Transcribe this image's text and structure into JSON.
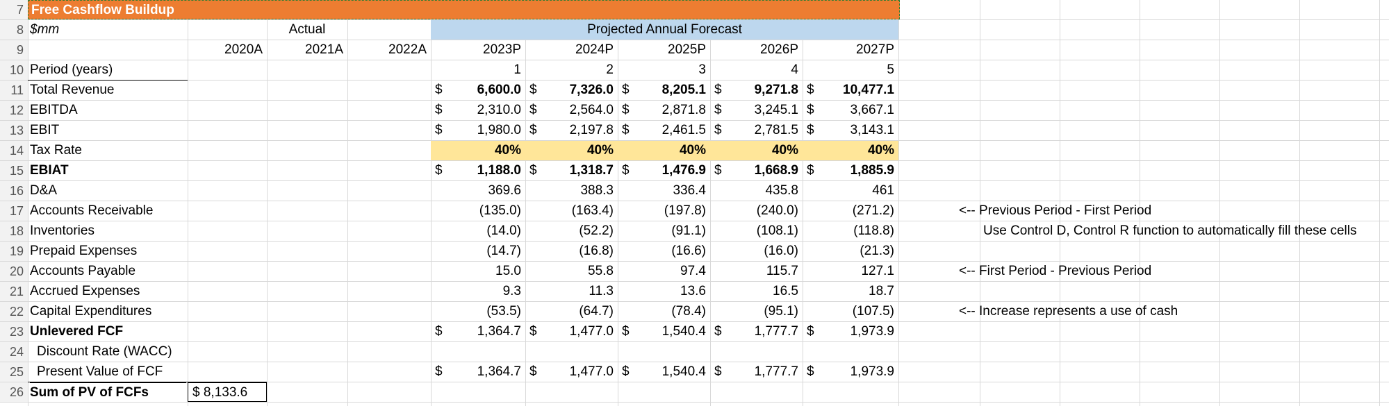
{
  "title": "Free Cashflow Buildup",
  "units": "$mm",
  "actual_header": "Actual",
  "projected_header": "Projected Annual Forecast",
  "years": [
    "2020A",
    "2021A",
    "2022A",
    "2023P",
    "2024P",
    "2025P",
    "2026P",
    "2027P"
  ],
  "period_label": "Period (years)",
  "periods": [
    "1",
    "2",
    "3",
    "4",
    "5"
  ],
  "row_numbers": [
    "7",
    "8",
    "9",
    "10",
    "11",
    "12",
    "13",
    "14",
    "15",
    "16",
    "17",
    "18",
    "19",
    "20",
    "21",
    "22",
    "23",
    "24",
    "25",
    "26"
  ],
  "dollar_sign": "$",
  "rows": [
    {
      "label": "Total Revenue",
      "values": [
        "6,600.0",
        "7,326.0",
        "8,205.1",
        "9,271.8",
        "10,477.1"
      ],
      "dollar": true,
      "bold_vals": true
    },
    {
      "label": "EBITDA",
      "values": [
        "2,310.0",
        "2,564.0",
        "2,871.8",
        "3,245.1",
        "3,667.1"
      ],
      "dollar": true
    },
    {
      "label": "EBIT",
      "values": [
        "1,980.0",
        "2,197.8",
        "2,461.5",
        "2,781.5",
        "3,143.1"
      ],
      "dollar": true
    },
    {
      "label": "Tax Rate",
      "values": [
        "40%",
        "40%",
        "40%",
        "40%",
        "40%"
      ],
      "highlight": true,
      "bold_vals": true
    },
    {
      "label": "EBIAT",
      "values": [
        "1,188.0",
        "1,318.7",
        "1,476.9",
        "1,668.9",
        "1,885.9"
      ],
      "dollar": true,
      "bold": true,
      "bold_vals": true
    },
    {
      "label": "D&A",
      "values": [
        "369.6",
        "388.3",
        "336.4",
        "435.8",
        "461"
      ]
    },
    {
      "label": "Accounts Receivable",
      "values": [
        "(135.0)",
        "(163.4)",
        "(197.8)",
        "(240.0)",
        "(271.2)"
      ]
    },
    {
      "label": "Inventories",
      "values": [
        "(14.0)",
        "(52.2)",
        "(91.1)",
        "(108.1)",
        "(118.8)"
      ]
    },
    {
      "label": "Prepaid Expenses",
      "values": [
        "(14.7)",
        "(16.8)",
        "(16.6)",
        "(16.0)",
        "(21.3)"
      ]
    },
    {
      "label": "Accounts Payable",
      "values": [
        "15.0",
        "55.8",
        "97.4",
        "115.7",
        "127.1"
      ]
    },
    {
      "label": "Accrued Expenses",
      "values": [
        "9.3",
        "11.3",
        "13.6",
        "16.5",
        "18.7"
      ]
    },
    {
      "label": "Capital Expenditures",
      "values": [
        "(53.5)",
        "(64.7)",
        "(78.4)",
        "(95.1)",
        "(107.5)"
      ]
    },
    {
      "label": "Unlevered FCF",
      "values": [
        "1,364.7",
        "1,477.0",
        "1,540.4",
        "1,777.7",
        "1,973.9"
      ],
      "dollar": true,
      "bold": true
    },
    {
      "label": "Discount Rate (WACC)",
      "values": [
        "",
        "",
        "",
        "",
        ""
      ],
      "indent": true
    },
    {
      "label": "Present Value of FCF",
      "values": [
        "1,364.7",
        "1,477.0",
        "1,540.4",
        "1,777.7",
        "1,973.9"
      ],
      "dollar": true,
      "indent": true
    },
    {
      "label": "Sum of PV of FCFs",
      "values": [
        "",
        "",
        "",
        "",
        ""
      ],
      "bold": true
    }
  ],
  "sum_pv_value": "$   8,133.6",
  "notes": {
    "ar": "<-- Previous Period - First Period",
    "inv": "Use Control D, Control R function to automatically fill these cells",
    "ap": "<-- First Period - Previous Period",
    "capex": "<-- Increase represents a use of cash"
  }
}
